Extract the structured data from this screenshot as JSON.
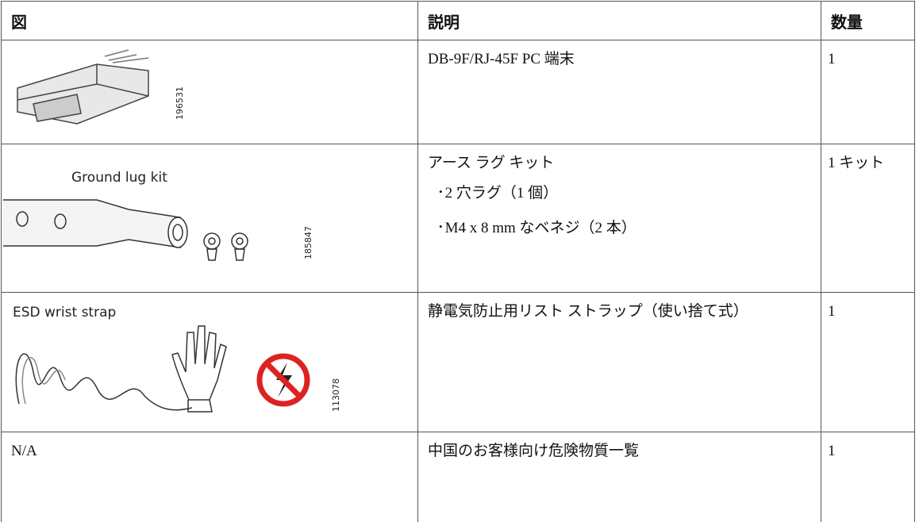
{
  "table": {
    "header": [
      "図",
      "説明",
      "数量"
    ],
    "rows": [
      {
        "figure": {
          "id": "196531"
        },
        "description": "DB-9F/RJ-45F PC 端末",
        "quantity": "1"
      },
      {
        "figure": {
          "caption": "Ground lug kit",
          "id": "185847"
        },
        "description": "アース ラグ キット",
        "bullets": [
          "2 穴ラグ（1 個）",
          "M4 x 8 mm なベネジ（2 本）"
        ],
        "quantity": "1 キット"
      },
      {
        "figure": {
          "caption": "ESD wrist strap",
          "id": "113078"
        },
        "description": "静電気防止用リスト ストラップ（使い捨て式）",
        "quantity": "1"
      },
      {
        "figure": {
          "text": "N/A"
        },
        "description": "中国のお客様向け危険物質一覧",
        "quantity": "1"
      }
    ]
  }
}
